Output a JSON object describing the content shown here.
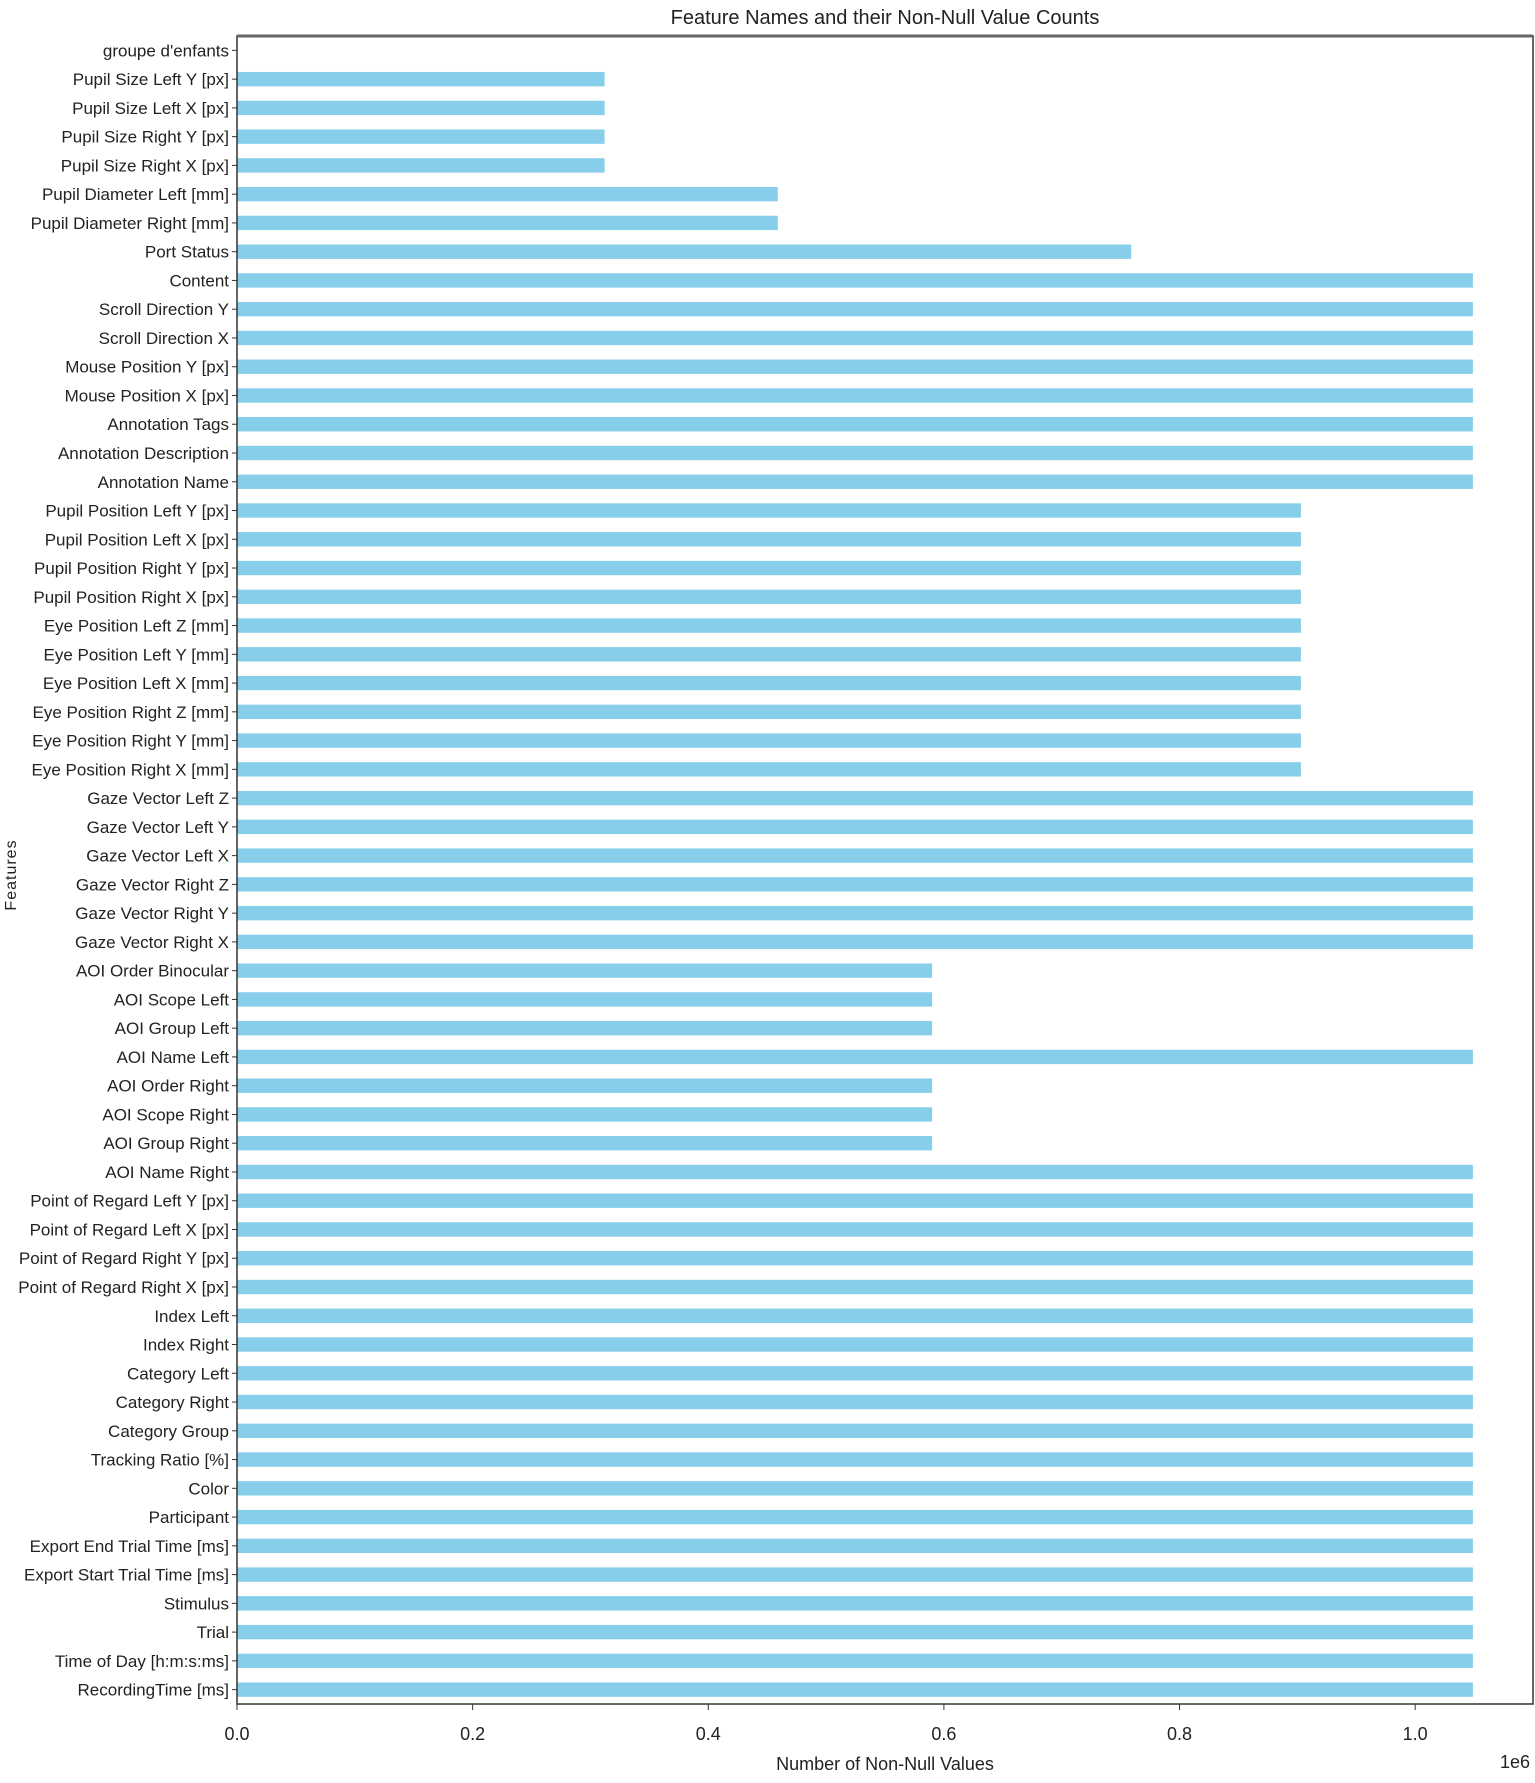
{
  "chart_data": {
    "type": "bar",
    "orientation": "horizontal",
    "title": "Feature Names and their Non-Null Value Counts",
    "xlabel": "Number of Non-Null Values",
    "ylabel": "Features",
    "x_offset_label": "1e6",
    "xlim": [
      0,
      1.1
    ],
    "x_scale_multiplier": 1000000,
    "xticks": [
      "0.0",
      "0.2",
      "0.4",
      "0.6",
      "0.8",
      "1.0"
    ],
    "grid": false,
    "bar_color": "#87CEEB",
    "categories": [
      "groupe d'enfants",
      "Pupil Size Left Y [px]",
      "Pupil Size Left X [px]",
      "Pupil Size Right Y [px]",
      "Pupil Size Right X [px]",
      "Pupil Diameter Left [mm]",
      "Pupil Diameter Right [mm]",
      "Port Status",
      "Content",
      "Scroll Direction Y",
      "Scroll Direction X",
      "Mouse Position Y [px]",
      "Mouse Position X [px]",
      "Annotation Tags",
      "Annotation Description",
      "Annotation Name",
      "Pupil Position Left Y [px]",
      "Pupil Position Left X [px]",
      "Pupil Position Right Y [px]",
      "Pupil Position Right X [px]",
      "Eye Position Left Z [mm]",
      "Eye Position Left Y [mm]",
      "Eye Position Left X [mm]",
      "Eye Position Right Z [mm]",
      "Eye Position Right Y [mm]",
      "Eye Position Right X [mm]",
      "Gaze Vector Left Z",
      "Gaze Vector Left Y",
      "Gaze Vector Left X",
      "Gaze Vector Right Z",
      "Gaze Vector Right Y",
      "Gaze Vector Right X",
      "AOI Order Binocular",
      "AOI Scope Left",
      "AOI Group Left",
      "AOI Name Left",
      "AOI Order Right",
      "AOI Scope Right",
      "AOI Group Right",
      "AOI Name Right",
      "Point of Regard Left Y [px]",
      "Point of Regard Left X [px]",
      "Point of Regard Right Y [px]",
      "Point of Regard Right X [px]",
      "Index Left",
      "Index Right",
      "Category Left",
      "Category Right",
      "Category Group",
      "Tracking Ratio [%]",
      "Color",
      "Participant",
      "Export End Trial Time [ms]",
      "Export Start Trial Time [ms]",
      "Stimulus",
      "Trial",
      "Time of Day [h:m:s:ms]",
      "RecordingTime [ms]"
    ],
    "values": [
      0,
      312000,
      312000,
      312000,
      312000,
      459000,
      459000,
      759000,
      1049000,
      1049000,
      1049000,
      1049000,
      1049000,
      1049000,
      1049000,
      1049000,
      903000,
      903000,
      903000,
      903000,
      903000,
      903000,
      903000,
      903000,
      903000,
      903000,
      1049000,
      1049000,
      1049000,
      1049000,
      1049000,
      1049000,
      590000,
      590000,
      590000,
      1049000,
      590000,
      590000,
      590000,
      1049000,
      1049000,
      1049000,
      1049000,
      1049000,
      1049000,
      1049000,
      1049000,
      1049000,
      1049000,
      1049000,
      1049000,
      1049000,
      1049000,
      1049000,
      1049000,
      1049000,
      1049000,
      1049000
    ]
  }
}
